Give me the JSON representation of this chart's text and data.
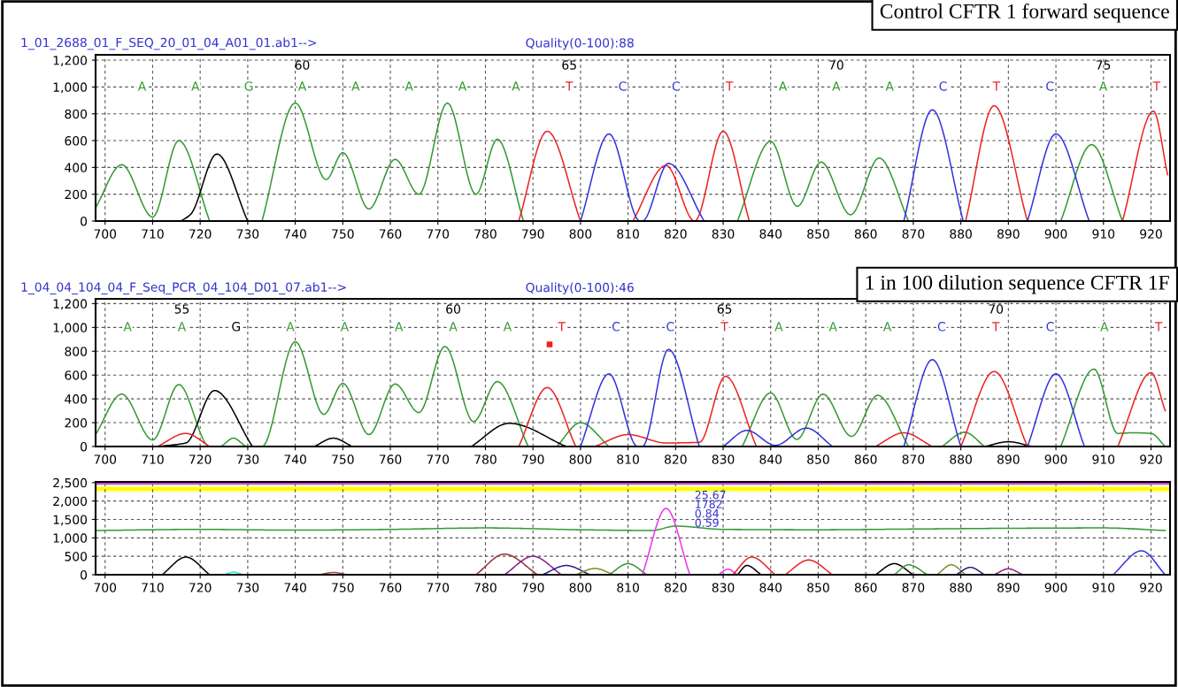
{
  "chart_data": [
    {
      "type": "line",
      "title": "Control CFTR 1 forward sequence",
      "annotations": [
        "1_01_2688_01_F_SEQ_20_01_04_A01_01.ab1-->",
        "Quality(0-100):88",
        "A",
        "A",
        "G",
        "A",
        "A",
        "A",
        "A",
        "A",
        "T",
        "C",
        "C",
        "T",
        "A",
        "A",
        "A",
        "C",
        "T",
        "C",
        "A",
        "T"
      ],
      "series": [
        {
          "color": "#339933",
          "x": [
            698,
            703.5,
            710,
            715.5,
            722,
            727,
            733,
            740,
            746.5,
            750,
            755.5,
            761,
            766,
            772,
            778,
            782.5,
            788,
            810,
            833,
            840,
            845.6,
            850.6,
            856.8,
            862.8,
            869,
            885,
            901,
            907.5,
            914
          ],
          "values": [
            100,
            420,
            30,
            600,
            0,
            null,
            0,
            880,
            310,
            510,
            90,
            460,
            200,
            880,
            200,
            610,
            0,
            null,
            0,
            595,
            110,
            440,
            47,
            470,
            0,
            null,
            0,
            570,
            0
          ]
        },
        {
          "color": "#000000",
          "x": [
            716,
            718,
            723.5,
            730
          ],
          "values": [
            0,
            50,
            500,
            0
          ]
        },
        {
          "color": "#ee2222",
          "x": [
            787,
            793,
            800,
            805,
            811,
            818,
            824,
            830,
            835.5,
            860,
            881,
            887,
            894,
            905,
            914,
            920.5,
            923.5
          ],
          "values": [
            0,
            670,
            0,
            null,
            0,
            415,
            0,
            670,
            0,
            null,
            0,
            860,
            0,
            null,
            0,
            820,
            345
          ]
        },
        {
          "color": "#3333dd",
          "x": [
            800,
            806,
            812.5,
            813,
            818.5,
            826,
            850,
            868,
            874,
            880.5,
            890,
            894,
            900,
            907
          ],
          "values": [
            0,
            650,
            0,
            0,
            430,
            0,
            null,
            0,
            830,
            0,
            null,
            0,
            650,
            0
          ]
        }
      ],
      "xlim": [
        698,
        924
      ],
      "xticks": [
        700,
        710,
        720,
        730,
        740,
        750,
        760,
        770,
        780,
        790,
        800,
        810,
        820,
        830,
        840,
        850,
        860,
        870,
        880,
        890,
        900,
        910,
        920
      ],
      "x2lim": [
        56.13,
        76.25
      ],
      "x2ticks": [
        60,
        65,
        70,
        75
      ],
      "ylim": [
        0,
        1240
      ],
      "yticks": [
        0,
        200,
        400,
        600,
        800,
        {
          "value": 1000,
          "label": "1,000"
        },
        {
          "value": 1200,
          "label": "1,200"
        }
      ],
      "grid": true,
      "legend": false
    },
    {
      "type": "line",
      "title": "1 in 100 dilution sequence CFTR 1F",
      "annotations": [
        "1_04_04_104_04_F_Seq_PCR_04_104_D01_07.ab1-->",
        "Quality(0-100):46",
        "A",
        "A",
        "G",
        "A",
        "A",
        "A",
        "A",
        "A",
        "T",
        "C",
        "C",
        "T",
        "A",
        "A",
        "A",
        "C",
        "T",
        "C",
        "A",
        "T"
      ],
      "series": [
        {
          "color": "#339933",
          "x": [
            698,
            703.5,
            710,
            715.5,
            722,
            724,
            727,
            730,
            733,
            740,
            746,
            750,
            755.5,
            761,
            766,
            771.5,
            777.5,
            782.5,
            789,
            792,
            795,
            800,
            806,
            820,
            834,
            840,
            845.5,
            851,
            857,
            862.5,
            869,
            874,
            876,
            880.8,
            885,
            890,
            901,
            908,
            913,
            916,
            920,
            923
          ],
          "values": [
            100,
            440,
            55,
            520,
            0,
            0,
            70,
            0,
            0,
            880,
            270,
            530,
            100,
            525,
            285,
            840,
            210,
            545,
            0,
            null,
            0,
            200,
            0,
            null,
            0,
            450,
            60,
            440,
            85,
            430,
            0,
            null,
            0,
            120,
            0,
            null,
            0,
            650,
            110,
            115,
            110,
            0
          ]
        },
        {
          "color": "#000000",
          "x": [
            711,
            717,
            723,
            731,
            740,
            744,
            748,
            752,
            760,
            777,
            785,
            797,
            820,
            885,
            890,
            895
          ],
          "values": [
            0,
            30,
            470,
            0,
            null,
            0,
            70,
            0,
            null,
            0,
            195,
            0,
            null,
            0,
            40,
            0
          ]
        },
        {
          "color": "#ee2222",
          "x": [
            711,
            717,
            722,
            750,
            787,
            793,
            799,
            801,
            803,
            810,
            818,
            825,
            830.5,
            837,
            850,
            862,
            868,
            874,
            877,
            880,
            887,
            894,
            905,
            913,
            920,
            923
          ],
          "values": [
            0,
            110,
            0,
            null,
            0,
            495,
            0,
            null,
            0,
            100,
            30,
            35,
            590,
            0,
            null,
            0,
            115,
            0,
            null,
            0,
            630,
            0,
            null,
            0,
            620,
            300
          ]
        },
        {
          "color": "#3333dd",
          "x": [
            800,
            806,
            812,
            813,
            818.5,
            825,
            827,
            830,
            835,
            841,
            847.5,
            853,
            860,
            868,
            874,
            880,
            887,
            894,
            900,
            906
          ],
          "values": [
            0,
            610,
            0,
            0,
            815,
            0,
            null,
            0,
            135,
            10,
            155,
            0,
            null,
            0,
            730,
            0,
            null,
            0,
            610,
            0
          ]
        },
        {
          "type": "scatter",
          "marker": "square",
          "color": "#ee2222",
          "x": [
            793.5
          ],
          "values": [
            857
          ]
        }
      ],
      "xlim": [
        698,
        924
      ],
      "xticks": [
        700,
        710,
        720,
        730,
        740,
        750,
        760,
        770,
        780,
        790,
        800,
        810,
        820,
        830,
        840,
        850,
        860,
        870,
        880,
        890,
        900,
        910,
        920
      ],
      "x2lim": [
        53.41,
        73.21
      ],
      "x2ticks": [
        55,
        60,
        65,
        70
      ],
      "ylim": [
        0,
        1240
      ],
      "yticks": [
        0,
        200,
        400,
        600,
        800,
        {
          "value": 1000,
          "label": "1,000"
        },
        {
          "value": 1200,
          "label": "1,200"
        }
      ],
      "grid": true,
      "legend": false
    },
    {
      "type": "line",
      "annotations": [
        "25.67",
        "1782",
        "0.84",
        "0.59"
      ],
      "series": [
        {
          "color": "#339933",
          "x": [
            698,
            720,
            740,
            760,
            780,
            800,
            815,
            820,
            830,
            850,
            870,
            890,
            910,
            923
          ],
          "values": [
            1200,
            1230,
            1210,
            1230,
            1270,
            1220,
            1200,
            1320,
            1230,
            1220,
            1240,
            1260,
            1270,
            1200
          ]
        },
        {
          "color": "#000000",
          "x": [
            712,
            717,
            722
          ],
          "values": [
            0,
            480,
            0
          ]
        },
        {
          "color": "#33dddd",
          "x": [
            725,
            727,
            729
          ],
          "values": [
            0,
            70,
            0
          ]
        },
        {
          "color": "#aa4444",
          "x": [
            745,
            748,
            751
          ],
          "values": [
            0,
            60,
            0
          ]
        },
        {
          "color": "#993333",
          "x": [
            778,
            784,
            791
          ],
          "values": [
            0,
            560,
            0
          ]
        },
        {
          "color": "#882288",
          "x": [
            784,
            790,
            796
          ],
          "values": [
            0,
            500,
            0
          ]
        },
        {
          "color": "#222288",
          "x": [
            792,
            797,
            802
          ],
          "values": [
            0,
            250,
            0
          ]
        },
        {
          "color": "#888822",
          "x": [
            799,
            803,
            807
          ],
          "values": [
            0,
            170,
            0
          ]
        },
        {
          "color": "#339933",
          "x": [
            806,
            810,
            814
          ],
          "values": [
            0,
            300,
            0
          ]
        },
        {
          "color": "#ee33ee",
          "x": [
            813,
            818,
            823
          ],
          "values": [
            0,
            1800,
            0
          ]
        },
        {
          "color": "#ee33ee",
          "x": [
            829,
            831,
            833
          ],
          "values": [
            0,
            150,
            0
          ]
        },
        {
          "color": "#000000",
          "x": [
            833,
            835,
            838
          ],
          "values": [
            0,
            250,
            0
          ]
        },
        {
          "color": "#ee2222",
          "x": [
            832,
            836,
            841
          ],
          "values": [
            0,
            480,
            0
          ]
        },
        {
          "color": "#ee2222",
          "x": [
            843,
            848,
            853
          ],
          "values": [
            0,
            400,
            0
          ]
        },
        {
          "color": "#000000",
          "x": [
            862,
            866,
            870
          ],
          "values": [
            0,
            300,
            0
          ]
        },
        {
          "color": "#339933",
          "x": [
            866,
            869,
            873
          ],
          "values": [
            0,
            270,
            0
          ]
        },
        {
          "color": "#888822",
          "x": [
            875,
            878,
            881
          ],
          "values": [
            0,
            270,
            0
          ]
        },
        {
          "color": "#222288",
          "x": [
            879,
            882,
            885
          ],
          "values": [
            0,
            200,
            0
          ]
        },
        {
          "color": "#882288",
          "x": [
            887,
            890,
            893
          ],
          "values": [
            0,
            160,
            0
          ]
        },
        {
          "color": "#3333dd",
          "x": [
            912,
            918,
            923
          ],
          "values": [
            0,
            650,
            0
          ]
        }
      ],
      "bands": [
        {
          "axis": "y",
          "from": 2270,
          "to": 2390,
          "color": "#ffff00"
        }
      ],
      "ref_lines": [
        {
          "axis": "y",
          "value": 2470,
          "color": "#cc44cc"
        }
      ],
      "xlim": [
        698,
        924
      ],
      "xticks": [
        700,
        710,
        720,
        730,
        740,
        750,
        760,
        770,
        780,
        790,
        800,
        810,
        820,
        830,
        840,
        850,
        860,
        870,
        880,
        890,
        900,
        910,
        920
      ],
      "ylim": [
        0,
        2520
      ],
      "yticks": [
        0,
        500,
        {
          "value": 1000,
          "label": "1,000"
        },
        {
          "value": 1500,
          "label": "1,500"
        },
        {
          "value": 2000,
          "label": "2,000"
        },
        {
          "value": 2500,
          "label": "2,500"
        }
      ],
      "grid": true,
      "legend": false
    }
  ]
}
